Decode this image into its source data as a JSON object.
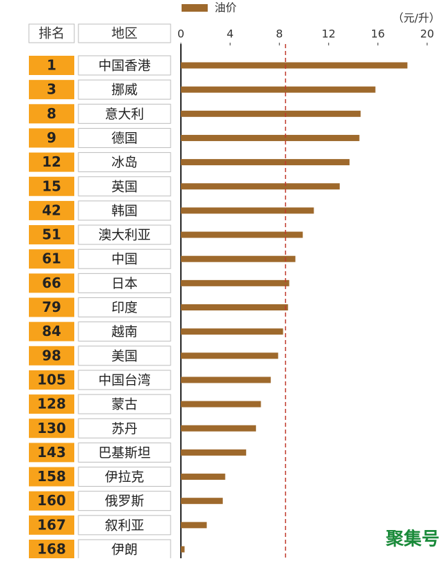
{
  "chart_data": {
    "type": "bar",
    "orientation": "horizontal",
    "legend": "油价",
    "unit": "（元/升）",
    "rank_header": "排名",
    "region_header": "地区",
    "ranks": [
      1,
      3,
      8,
      9,
      12,
      15,
      42,
      51,
      61,
      66,
      79,
      84,
      98,
      105,
      128,
      130,
      143,
      158,
      160,
      167,
      168
    ],
    "categories": [
      "中国香港",
      "挪威",
      "意大利",
      "德国",
      "冰岛",
      "英国",
      "韩国",
      "澳大利亚",
      "中国",
      "日本",
      "印度",
      "越南",
      "美国",
      "中国台湾",
      "蒙古",
      "苏丹",
      "巴基斯坦",
      "伊拉克",
      "俄罗斯",
      "叙利亚",
      "伊朗"
    ],
    "values": [
      18.4,
      15.8,
      14.6,
      14.5,
      13.7,
      12.9,
      10.8,
      9.9,
      9.3,
      8.8,
      8.7,
      8.3,
      7.9,
      7.3,
      6.5,
      6.1,
      5.3,
      3.6,
      3.4,
      2.1,
      0.3
    ],
    "color": "#9e692c",
    "rank_color": "#f7a21b",
    "reference_line": 8.5,
    "reference_color": "#c0392b",
    "xlim": [
      0,
      20
    ],
    "xticks": [
      0,
      4,
      8,
      12,
      16,
      20
    ],
    "watermark": "聚集号"
  }
}
